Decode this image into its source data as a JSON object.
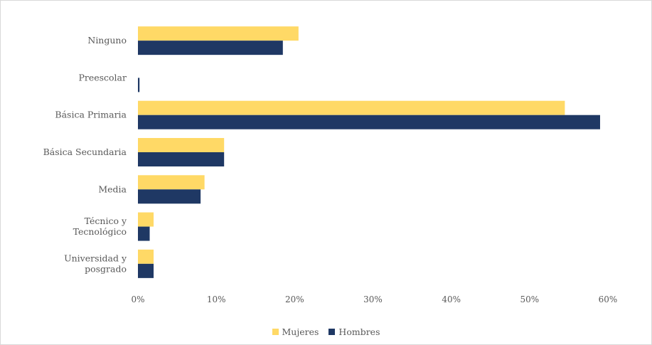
{
  "chart_data": {
    "type": "bar",
    "orientation": "horizontal",
    "categories": [
      "Ninguno",
      "Preescolar",
      "Básica Primaria",
      "Básica Secundaria",
      "Media",
      "Técnico y Tecnológico",
      "Universidad y posgrado"
    ],
    "category_lines": [
      [
        "Ninguno"
      ],
      [
        "Preescolar"
      ],
      [
        "Básica Primaria"
      ],
      [
        "Básica Secundaria"
      ],
      [
        "Media"
      ],
      [
        "Técnico y",
        "Tecnológico"
      ],
      [
        "Universidad y",
        "posgrado"
      ]
    ],
    "series": [
      {
        "name": "Mujeres",
        "color": "#FFD966",
        "values": [
          20.5,
          0,
          54.5,
          11,
          8.5,
          2,
          2
        ]
      },
      {
        "name": "Hombres",
        "color": "#1F3864",
        "values": [
          18.5,
          0.2,
          59,
          11,
          8,
          1.5,
          2
        ]
      }
    ],
    "xlim": [
      0,
      60
    ],
    "xticks": [
      0,
      10,
      20,
      30,
      40,
      50,
      60
    ],
    "xtick_labels": [
      "0%",
      "10%",
      "20%",
      "30%",
      "40%",
      "50%",
      "60%"
    ],
    "grid": false,
    "legend_position": "bottom"
  }
}
